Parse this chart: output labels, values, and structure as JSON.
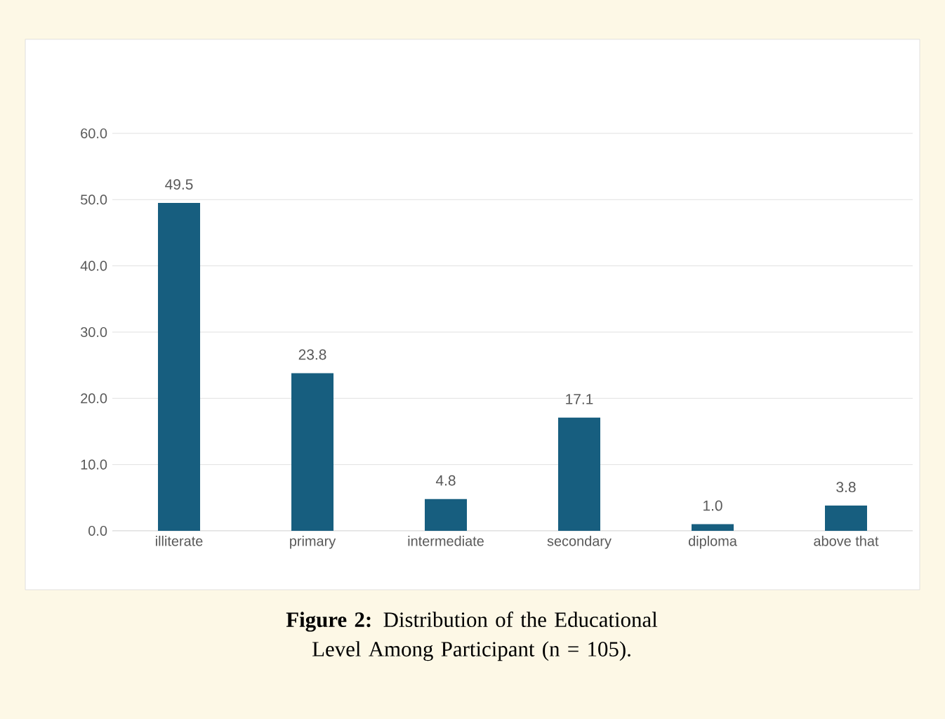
{
  "chart_data": {
    "type": "bar",
    "categories": [
      "illiterate",
      "primary",
      "intermediate",
      "secondary",
      "diploma",
      "above that"
    ],
    "values": [
      49.5,
      23.8,
      4.8,
      17.1,
      1.0,
      3.8
    ],
    "value_labels": [
      "49.5",
      "23.8",
      "4.8",
      "17.1",
      "1.0",
      "3.8"
    ],
    "color": "#175e7f",
    "ylim": [
      0,
      60
    ],
    "yticks": [
      {
        "value": 0,
        "label": "0.0"
      },
      {
        "value": 10,
        "label": "10.0"
      },
      {
        "value": 20,
        "label": "20.0"
      },
      {
        "value": 30,
        "label": "30.0"
      },
      {
        "value": 40,
        "label": "40.0"
      },
      {
        "value": 50,
        "label": "50.0"
      },
      {
        "value": 60,
        "label": "60.0"
      }
    ],
    "grid": "y",
    "annotations": [
      "**Figure 2:** Distribution of the Educational Level Among Participant (n = 105)."
    ]
  }
}
